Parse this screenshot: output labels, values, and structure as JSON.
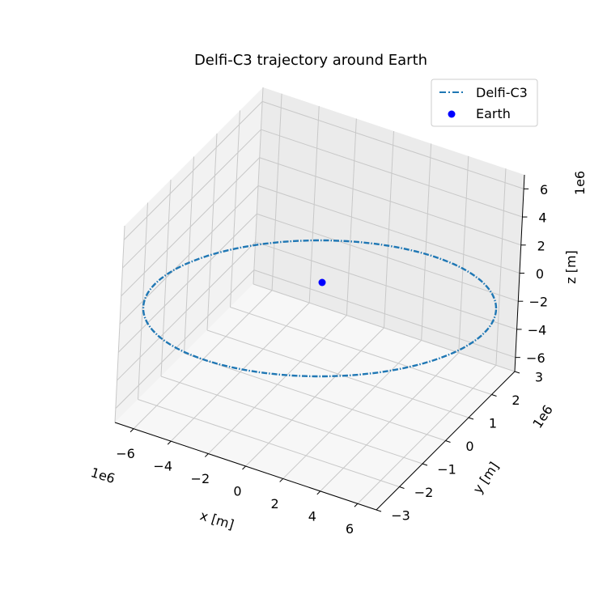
{
  "chart_data": {
    "type": "line3d",
    "title": "Delfi-C3 trajectory around Earth",
    "axes": {
      "x": {
        "label": "x [m]",
        "range": [
          -7000000,
          7000000
        ],
        "ticks": [
          -6,
          -4,
          -2,
          0,
          2,
          4,
          6
        ],
        "tick_labels": [
          "−6",
          "−4",
          "−2",
          "0",
          "2",
          "4",
          "6"
        ],
        "offset_text": "1e6"
      },
      "y": {
        "label": "y [m]",
        "range": [
          -3000000,
          3000000
        ],
        "ticks": [
          -3,
          -2,
          -1,
          0,
          1,
          2,
          3
        ],
        "tick_labels": [
          "−3",
          "−2",
          "−1",
          "0",
          "1",
          "2",
          "3"
        ],
        "offset_text": "1e6"
      },
      "z": {
        "label": "z [m]",
        "range": [
          -7000000,
          7000000
        ],
        "ticks": [
          -6,
          -4,
          -2,
          0,
          2,
          4,
          6
        ],
        "tick_labels": [
          "−6",
          "−4",
          "−2",
          "0",
          "2",
          "4",
          "6"
        ],
        "offset_text": "1e6"
      }
    },
    "series": [
      {
        "name": "Delfi-C3",
        "kind": "line",
        "style": "dashdot",
        "color": "#1f77b4",
        "orbit": {
          "center": [
            0,
            0,
            0
          ],
          "radius_x_m": 6950000,
          "radius_z_m": 6950000,
          "y_amplitude_m": 0
        }
      },
      {
        "name": "Earth",
        "kind": "scatter",
        "color": "#0000ff",
        "points": [
          [
            0,
            0,
            0
          ]
        ]
      }
    ],
    "legend": {
      "position": "top-right"
    },
    "grid": true
  }
}
